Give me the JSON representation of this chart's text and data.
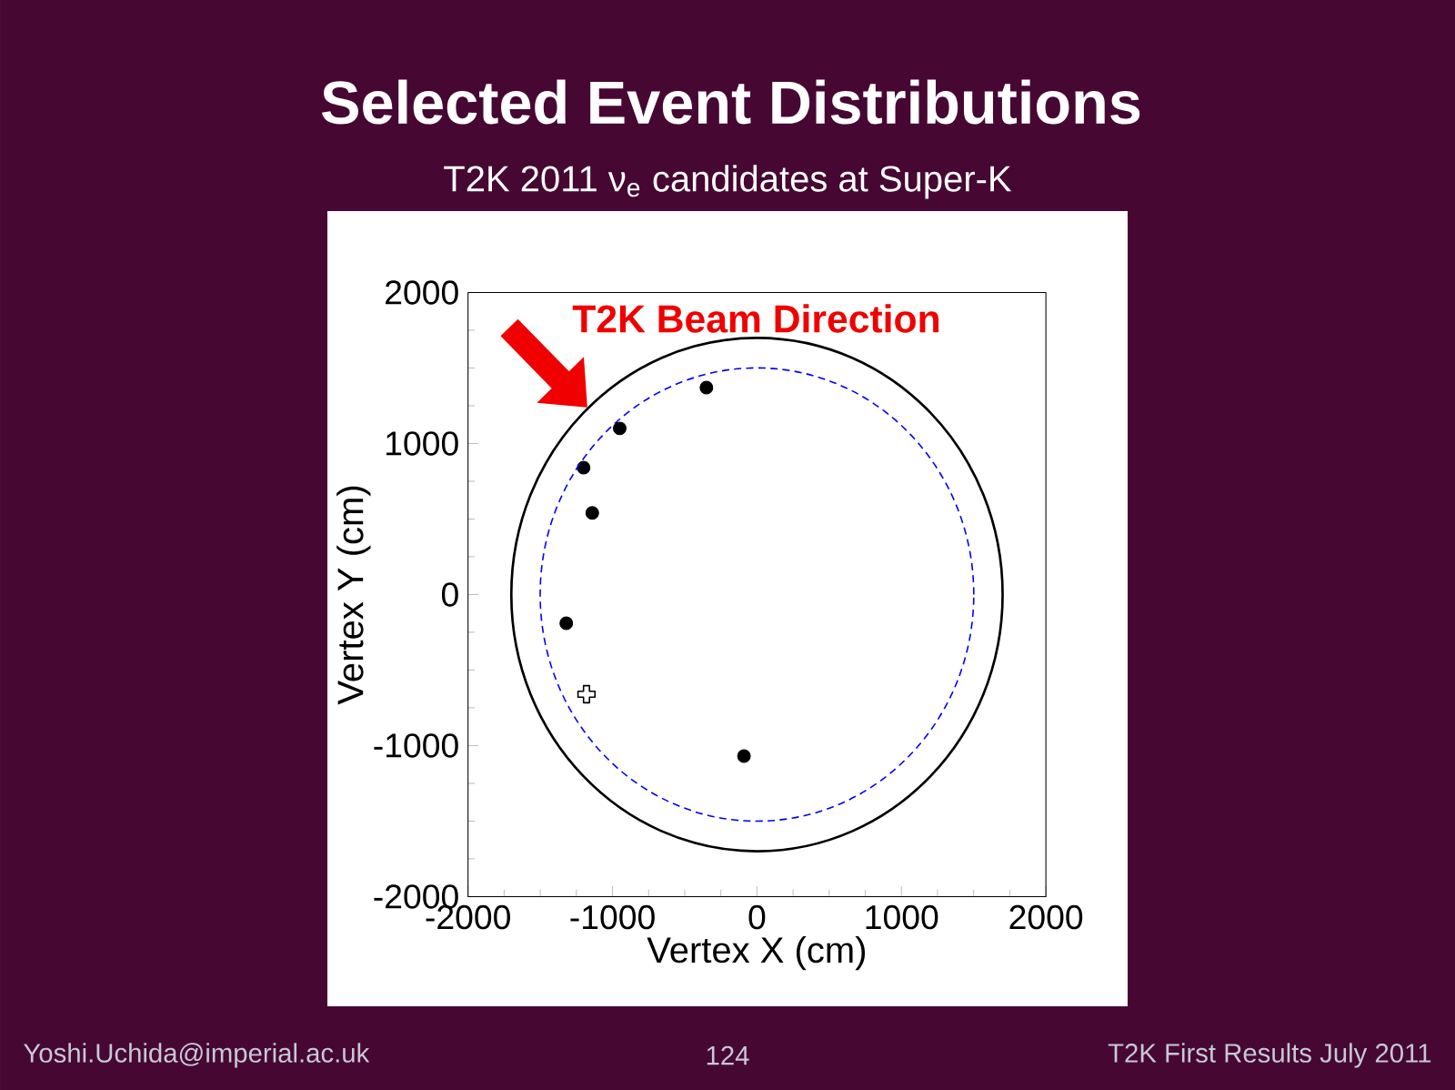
{
  "chart_data": {
    "type": "scatter",
    "title": "Selected Event Distributions",
    "subtitle": "T2K 2011 ν$_{e}$ candidates at Super-K",
    "xlabel": "Vertex X (cm)",
    "ylabel": "Vertex Y (cm)",
    "xlim": [
      -2000,
      2000
    ],
    "ylim": [
      -2000,
      2000
    ],
    "xticks": [
      -2000,
      -1000,
      0,
      1000,
      2000
    ],
    "yticks": [
      -2000,
      -1000,
      0,
      1000,
      2000
    ],
    "grid": false,
    "annotations": [
      "T2K Beam Direction",
      "Yoshi.Uchida@imperial.ac.uk",
      "124",
      "T2K First Results July 2011"
    ],
    "series": [
      {
        "color": "#000000",
        "marker": "circle",
        "x": [
          -350,
          -950,
          -1200,
          -1140,
          -1320,
          -90
        ],
        "values": [
          1370,
          1100,
          840,
          540,
          -190,
          -1070
        ]
      },
      {
        "color": "#000000",
        "marker": "cross",
        "x": [
          -1180
        ],
        "values": [
          -660
        ]
      }
    ]
  }
}
